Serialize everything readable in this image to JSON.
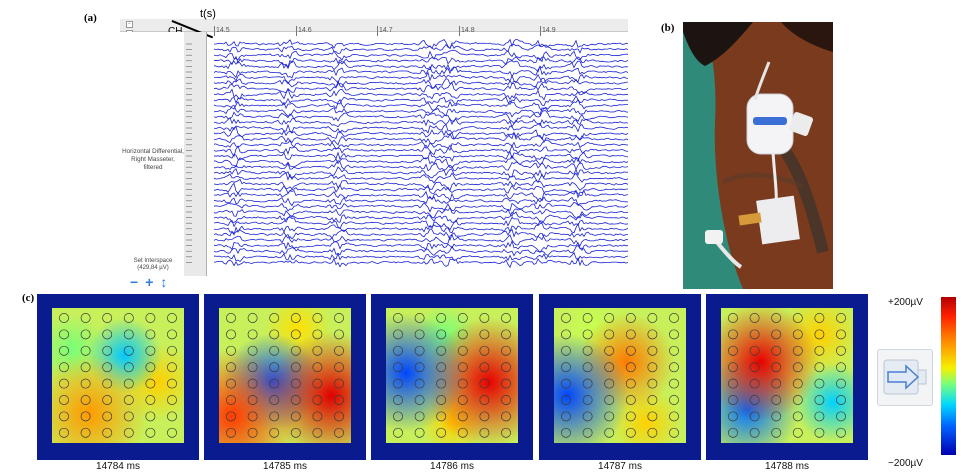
{
  "panel_labels": {
    "a": "(a)",
    "b": "(b)",
    "c": "(c)"
  },
  "eeg": {
    "time_axis_label": "t(s)",
    "channel_label": "CH",
    "ticks": [
      "14.5",
      "14.6",
      "14.7",
      "14.8",
      "14.9"
    ],
    "side_note": "Horizontal Differential, Right Masseter, filtered",
    "interspace": "Set Interspace\n(429,84 µV)",
    "controls": [
      "−",
      "+",
      "↕"
    ],
    "trace_color": "#1a22d6",
    "channel_count": 40
  },
  "photo": {
    "background": "#2f8a7a",
    "horse": "#7a3a1e",
    "device": "#f4f4f6",
    "accent": "#3b6fd6"
  },
  "heatmaps": [
    {
      "caption": "14784 ms"
    },
    {
      "caption": "14785 ms"
    },
    {
      "caption": "14786 ms"
    },
    {
      "caption": "14787 ms"
    },
    {
      "caption": "14788 ms"
    }
  ],
  "colorbar": {
    "max_label": "+200µV",
    "min_label": "−200µV"
  },
  "grid": {
    "rows": 8,
    "cols": 6
  },
  "thumbnail": {
    "icon": "electrode-grid-arrow-icon"
  }
}
